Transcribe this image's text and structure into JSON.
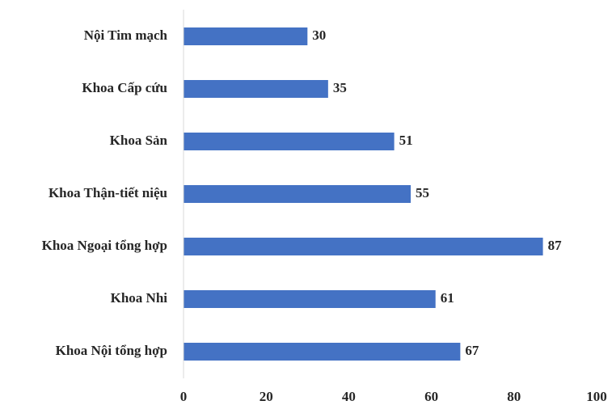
{
  "chart_data": {
    "type": "bar",
    "orientation": "horizontal",
    "title": "",
    "xlabel": "",
    "ylabel": "",
    "categories": [
      "Nội Tim mạch",
      "Khoa Cấp cứu",
      "Khoa Sản",
      "Khoa Thận-tiết niệu",
      "Khoa Ngoại tổng hợp",
      "Khoa Nhi",
      "Khoa Nội tổng hợp"
    ],
    "values": [
      30,
      35,
      51,
      55,
      87,
      61,
      67
    ],
    "xlim": [
      0,
      100
    ],
    "xticks": [
      0,
      20,
      40,
      60,
      80,
      100
    ],
    "xtick_labels": [
      "0",
      "20",
      "40",
      "60",
      "80",
      "100"
    ],
    "data_labels": [
      "30",
      "35",
      "51",
      "55",
      "87",
      "61",
      "67"
    ],
    "grid": false,
    "legend": "none",
    "colors": {
      "bar": "#4472C4",
      "axis": "#d9d9d9",
      "text": "#262626"
    }
  }
}
